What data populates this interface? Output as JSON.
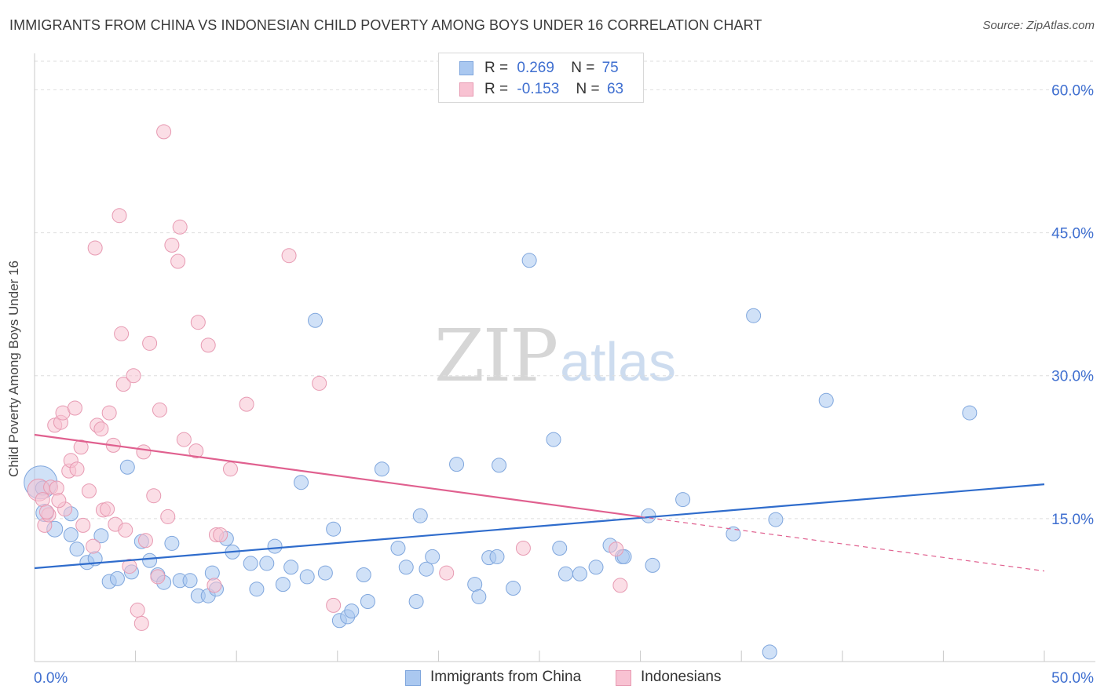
{
  "title": "IMMIGRANTS FROM CHINA VS INDONESIAN CHILD POVERTY AMONG BOYS UNDER 16 CORRELATION CHART",
  "source": "Source: ZipAtlas.com",
  "watermark": {
    "part1": "ZIP",
    "part2": "atlas"
  },
  "legend": {
    "rows": [
      {
        "r_label": "R =",
        "r_value": "0.269",
        "n_label": "N =",
        "n_value": "75",
        "color": "#aac8f0",
        "border": "#7fa6dd"
      },
      {
        "r_label": "R =",
        "r_value": "-0.153",
        "n_label": "N =",
        "n_value": "63",
        "color": "#f8c2d2",
        "border": "#e79ab2"
      }
    ]
  },
  "bottom_legend": [
    {
      "label": "Immigrants from China",
      "color": "#aac8f0",
      "border": "#7fa6dd"
    },
    {
      "label": "Indonesians",
      "color": "#f8c2d2",
      "border": "#e79ab2"
    }
  ],
  "chart_data": {
    "type": "scatter",
    "title": "IMMIGRANTS FROM CHINA VS INDONESIAN CHILD POVERTY AMONG BOYS UNDER 16 CORRELATION CHART",
    "xlabel": "",
    "ylabel": "Child Poverty Among Boys Under 16",
    "xlim": [
      0,
      50
    ],
    "ylim": [
      0,
      63
    ],
    "x_tick_labels": [
      "0.0%",
      "50.0%"
    ],
    "y_ticks": [
      15,
      30,
      45,
      60
    ],
    "y_tick_labels": [
      "15.0%",
      "30.0%",
      "45.0%",
      "60.0%"
    ],
    "grid": true,
    "legend_position": "top-center",
    "colors": {
      "blue_fill": "#aac8f0",
      "blue_stroke": "#7fa6dd",
      "blue_line": "#2f6ccc",
      "pink_fill": "#f8c2d2",
      "pink_stroke": "#e79ab2",
      "pink_line": "#e0608f",
      "tick_label": "#3f6fd0",
      "grid": "#dedede"
    },
    "series": [
      {
        "name": "Immigrants from China",
        "r": 0.269,
        "n": 75,
        "trend": {
          "x0": 0,
          "y0": 9.8,
          "x1": 50,
          "y1": 18.6
        },
        "points": [
          [
            0.3,
            18.8,
            20
          ],
          [
            0.5,
            15.6,
            10
          ],
          [
            1.0,
            13.9,
            9
          ],
          [
            1.8,
            15.5,
            8
          ],
          [
            1.8,
            13.3,
            8
          ],
          [
            2.1,
            11.8,
            8
          ],
          [
            2.6,
            10.4,
            8
          ],
          [
            3.0,
            10.8,
            8
          ],
          [
            3.3,
            13.2,
            8
          ],
          [
            3.7,
            8.4,
            8
          ],
          [
            4.1,
            8.7,
            8
          ],
          [
            4.6,
            20.4,
            8
          ],
          [
            4.8,
            9.4,
            8
          ],
          [
            5.3,
            12.6,
            8
          ],
          [
            5.7,
            10.6,
            8
          ],
          [
            6.1,
            9.1,
            8
          ],
          [
            6.4,
            8.3,
            8
          ],
          [
            6.8,
            12.4,
            8
          ],
          [
            7.2,
            8.5,
            8
          ],
          [
            7.7,
            8.5,
            8
          ],
          [
            8.1,
            6.9,
            8
          ],
          [
            8.6,
            6.9,
            8
          ],
          [
            8.8,
            9.3,
            8
          ],
          [
            9.0,
            7.6,
            8
          ],
          [
            9.5,
            12.9,
            8
          ],
          [
            9.8,
            11.5,
            8
          ],
          [
            10.7,
            10.3,
            8
          ],
          [
            11.0,
            7.6,
            8
          ],
          [
            11.5,
            10.3,
            8
          ],
          [
            11.9,
            12.1,
            8
          ],
          [
            12.3,
            8.1,
            8
          ],
          [
            12.7,
            9.9,
            8
          ],
          [
            13.2,
            18.8,
            8
          ],
          [
            13.5,
            8.9,
            8
          ],
          [
            13.9,
            35.8,
            8
          ],
          [
            14.4,
            9.3,
            8
          ],
          [
            14.8,
            13.9,
            8
          ],
          [
            15.1,
            4.3,
            8
          ],
          [
            15.5,
            4.7,
            8
          ],
          [
            15.7,
            5.3,
            8
          ],
          [
            16.3,
            9.1,
            8
          ],
          [
            16.5,
            6.3,
            8
          ],
          [
            17.2,
            20.2,
            8
          ],
          [
            18.0,
            11.9,
            8
          ],
          [
            18.4,
            9.9,
            8
          ],
          [
            18.9,
            6.3,
            8
          ],
          [
            19.1,
            15.3,
            8
          ],
          [
            19.4,
            9.7,
            8
          ],
          [
            19.7,
            11.0,
            8
          ],
          [
            20.9,
            20.7,
            8
          ],
          [
            21.8,
            8.1,
            8
          ],
          [
            22.0,
            6.8,
            8
          ],
          [
            22.5,
            10.9,
            8
          ],
          [
            22.9,
            11.0,
            8
          ],
          [
            23.0,
            20.6,
            8
          ],
          [
            23.7,
            7.7,
            8
          ],
          [
            24.5,
            42.1,
            8
          ],
          [
            25.7,
            23.3,
            8
          ],
          [
            26.0,
            11.9,
            8
          ],
          [
            26.3,
            9.2,
            8
          ],
          [
            27.0,
            9.2,
            8
          ],
          [
            27.8,
            9.9,
            8
          ],
          [
            28.5,
            12.2,
            8
          ],
          [
            29.1,
            11.0,
            8
          ],
          [
            29.2,
            11.0,
            8
          ],
          [
            30.4,
            15.3,
            8
          ],
          [
            30.6,
            10.1,
            8
          ],
          [
            32.1,
            17.0,
            8
          ],
          [
            34.6,
            13.4,
            8
          ],
          [
            35.6,
            36.3,
            8
          ],
          [
            36.4,
            1.0,
            8
          ],
          [
            36.7,
            14.9,
            8
          ],
          [
            39.2,
            27.4,
            8
          ],
          [
            46.3,
            26.1,
            8
          ],
          [
            0.4,
            18.2,
            8
          ]
        ]
      },
      {
        "name": "Indonesians",
        "r": -0.153,
        "n": 63,
        "trend": {
          "x0": 0,
          "y0": 23.8,
          "x1": 30,
          "y1": 15.2
        },
        "trend_extension": {
          "x0": 30,
          "y0": 15.2,
          "x1": 50,
          "y1": 9.5
        },
        "points": [
          [
            0.2,
            18.0,
            13
          ],
          [
            0.4,
            17.0,
            8
          ],
          [
            0.5,
            14.3,
            8
          ],
          [
            0.7,
            15.4,
            8
          ],
          [
            0.8,
            18.3,
            8
          ],
          [
            1.0,
            24.8,
            8
          ],
          [
            1.1,
            18.2,
            8
          ],
          [
            1.3,
            25.1,
            8
          ],
          [
            1.4,
            26.1,
            8
          ],
          [
            1.5,
            16.0,
            8
          ],
          [
            1.7,
            20.0,
            8
          ],
          [
            1.8,
            21.1,
            8
          ],
          [
            2.0,
            26.6,
            8
          ],
          [
            2.1,
            20.2,
            8
          ],
          [
            2.3,
            22.5,
            8
          ],
          [
            2.4,
            14.3,
            8
          ],
          [
            2.7,
            17.9,
            8
          ],
          [
            2.9,
            12.1,
            8
          ],
          [
            3.0,
            43.4,
            8
          ],
          [
            3.1,
            24.8,
            8
          ],
          [
            3.3,
            24.4,
            8
          ],
          [
            3.4,
            15.9,
            8
          ],
          [
            3.6,
            16.0,
            8
          ],
          [
            3.7,
            26.1,
            8
          ],
          [
            3.9,
            22.7,
            8
          ],
          [
            4.0,
            14.4,
            8
          ],
          [
            4.2,
            46.8,
            8
          ],
          [
            4.3,
            34.4,
            8
          ],
          [
            4.4,
            29.1,
            8
          ],
          [
            4.5,
            13.8,
            8
          ],
          [
            4.7,
            10.0,
            8
          ],
          [
            4.9,
            30.0,
            8
          ],
          [
            5.1,
            5.4,
            8
          ],
          [
            5.3,
            4.0,
            8
          ],
          [
            5.4,
            22.0,
            8
          ],
          [
            5.5,
            12.7,
            8
          ],
          [
            5.7,
            33.4,
            8
          ],
          [
            5.9,
            17.4,
            8
          ],
          [
            6.1,
            8.9,
            8
          ],
          [
            6.2,
            26.4,
            8
          ],
          [
            6.6,
            15.2,
            8
          ],
          [
            6.8,
            43.7,
            8
          ],
          [
            7.1,
            42.0,
            8
          ],
          [
            7.2,
            45.6,
            8
          ],
          [
            7.4,
            23.3,
            8
          ],
          [
            8.0,
            22.1,
            8
          ],
          [
            8.1,
            35.6,
            8
          ],
          [
            8.6,
            33.2,
            8
          ],
          [
            8.9,
            8.0,
            8
          ],
          [
            9.0,
            13.3,
            8
          ],
          [
            9.2,
            13.3,
            8
          ],
          [
            9.7,
            20.2,
            8
          ],
          [
            10.5,
            27.0,
            8
          ],
          [
            12.6,
            42.6,
            8
          ],
          [
            14.1,
            29.2,
            8
          ],
          [
            14.8,
            5.9,
            8
          ],
          [
            20.4,
            9.3,
            8
          ],
          [
            24.2,
            11.9,
            8
          ],
          [
            28.8,
            11.8,
            8
          ],
          [
            29.0,
            8.0,
            8
          ],
          [
            6.4,
            55.6,
            8
          ],
          [
            0.6,
            15.7,
            8
          ],
          [
            1.2,
            16.9,
            8
          ]
        ]
      }
    ]
  }
}
